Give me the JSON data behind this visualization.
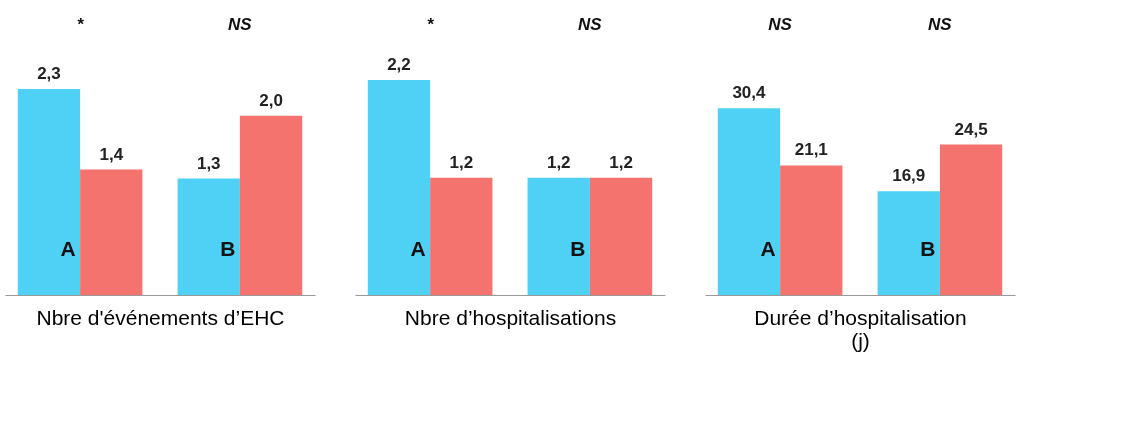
{
  "chart_data": [
    {
      "type": "bar",
      "xlabel": "Nbre d'événements d’EHC",
      "categories": [
        "A",
        "B"
      ],
      "tick_labels": "x",
      "legend": false,
      "series": [
        {
          "color": "#4fd0f5",
          "values": [
            2.3,
            1.3
          ],
          "value_labels": [
            "2,3",
            "1,3"
          ]
        },
        {
          "color": "#f4736f",
          "values": [
            1.4,
            2.0
          ],
          "value_labels": [
            "1,4",
            "2,0"
          ]
        }
      ],
      "annotations": [
        "*",
        "NS"
      ]
    },
    {
      "type": "bar",
      "xlabel": "Nbre d’hospitalisations",
      "categories": [
        "A",
        "B"
      ],
      "tick_labels": "x",
      "legend": false,
      "series": [
        {
          "color": "#4fd0f5",
          "values": [
            2.2,
            1.2
          ],
          "value_labels": [
            "2,2",
            "1,2"
          ]
        },
        {
          "color": "#f4736f",
          "values": [
            1.2,
            1.2
          ],
          "value_labels": [
            "1,2",
            "1,2"
          ]
        }
      ],
      "annotations": [
        "*",
        "NS"
      ]
    },
    {
      "type": "bar",
      "xlabel": "Durée d’hospitalisation (j)",
      "categories": [
        "A",
        "B"
      ],
      "tick_labels": "x",
      "legend": false,
      "series": [
        {
          "color": "#4fd0f5",
          "values": [
            30.4,
            16.9
          ],
          "value_labels": [
            "30,4",
            "16,9"
          ]
        },
        {
          "color": "#f4736f",
          "values": [
            21.1,
            24.5
          ],
          "value_labels": [
            "21,1",
            "24,5"
          ]
        }
      ],
      "annotations": [
        "NS",
        "NS"
      ]
    }
  ]
}
